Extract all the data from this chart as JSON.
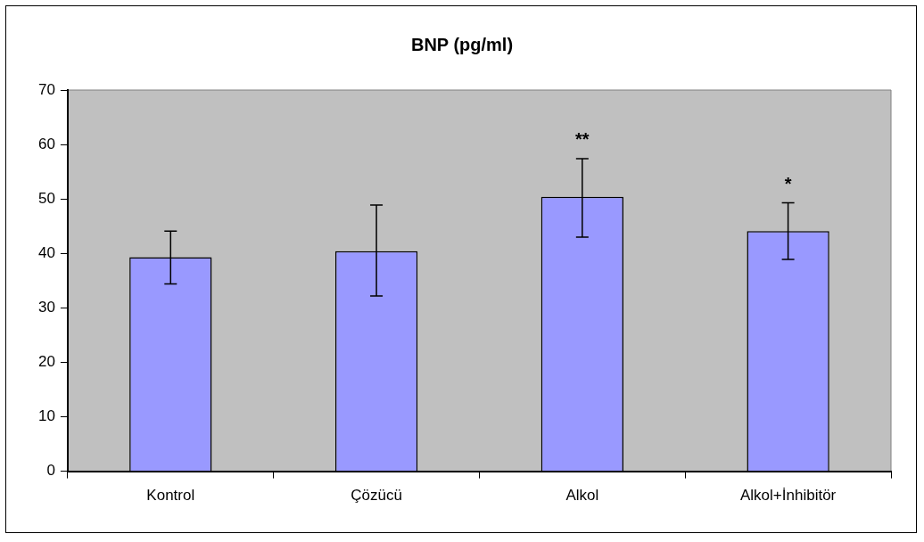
{
  "chart_data": {
    "type": "bar",
    "title": "BNP (pg/ml)",
    "categories": [
      "Kontrol",
      "Çözücü",
      "Alkol",
      "Alkol+İnhibitör"
    ],
    "values": [
      39.3,
      40.4,
      50.4,
      44.1
    ],
    "errors": [
      [
        34.4,
        44.1
      ],
      [
        32.2,
        48.9
      ],
      [
        43.0,
        57.4
      ],
      [
        38.9,
        49.3
      ]
    ],
    "color": "#9999ff",
    "ylim": [
      0,
      70
    ],
    "yticks": [
      0,
      10,
      20,
      30,
      40,
      50,
      60,
      70
    ],
    "grid": false,
    "legend": false,
    "annotations": [
      {
        "text": "**",
        "x": "Alkol",
        "y": 57.4
      },
      {
        "text": "*",
        "x": "Alkol+İnhibitör",
        "y": 49.3
      }
    ]
  }
}
